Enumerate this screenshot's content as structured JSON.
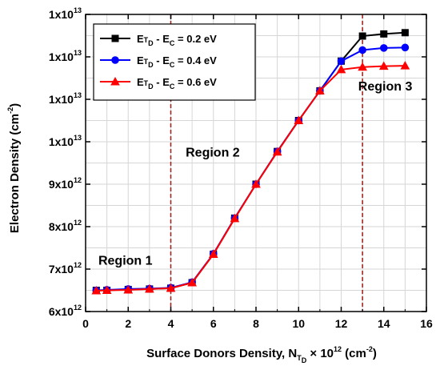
{
  "chart_data": {
    "type": "line",
    "xlabel": {
      "prefix": "Surface Donors Density, N",
      "sub": "T",
      "sub2": "D",
      "mid": " × 10",
      "sup": "12",
      "suffix": " (cm",
      "sup2": "-2",
      "end": ")"
    },
    "ylabel": {
      "main": "Electron Density (cm",
      "sup": "-2",
      "end": ")"
    },
    "xlim": [
      0,
      16
    ],
    "ylim": [
      6000000000000.0,
      13000000000000.0
    ],
    "xticks": [
      {
        "value": 0,
        "label": "0"
      },
      {
        "value": 2,
        "label": "2"
      },
      {
        "value": 4,
        "label": "4"
      },
      {
        "value": 6,
        "label": "6"
      },
      {
        "value": 8,
        "label": "8"
      },
      {
        "value": 10,
        "label": "10"
      },
      {
        "value": 12,
        "label": "12"
      },
      {
        "value": 14,
        "label": "14"
      },
      {
        "value": 16,
        "label": "16"
      }
    ],
    "yticks": [
      {
        "value": 6000000000000.0,
        "base": "6x10",
        "exp": "12"
      },
      {
        "value": 7000000000000.0,
        "base": "7x10",
        "exp": "12"
      },
      {
        "value": 8000000000000.0,
        "base": "8x10",
        "exp": "12"
      },
      {
        "value": 9000000000000.0,
        "base": "9x10",
        "exp": "12"
      },
      {
        "value": 10000000000000.0,
        "base": "1x10",
        "exp": "13"
      },
      {
        "value": 11000000000000.0,
        "base": "1x10",
        "exp": "13"
      },
      {
        "value": 12000000000000.0,
        "base": "1x10",
        "exp": "13"
      },
      {
        "value": 13000000000000.0,
        "base": "1x10",
        "exp": "13"
      }
    ],
    "grid": true,
    "legend_position": "top-left",
    "x": [
      0.5,
      1,
      2,
      3,
      4,
      5,
      6,
      7,
      8,
      9,
      10,
      11,
      12,
      13,
      14,
      15
    ],
    "series": [
      {
        "name": {
          "a": "E",
          "b": "T",
          "c": "D",
          "d": " - E",
          "e": "C",
          "f": " = 0.2 eV"
        },
        "color": "#000000",
        "marker": "square",
        "values": [
          6500000000000.0,
          6500000000000.0,
          6520000000000.0,
          6530000000000.0,
          6550000000000.0,
          6680000000000.0,
          7350000000000.0,
          8200000000000.0,
          9000000000000.0,
          9770000000000.0,
          10500000000000.0,
          11200000000000.0,
          11900000000000.0,
          12490000000000.0,
          12540000000000.0,
          12570000000000.0
        ]
      },
      {
        "name": {
          "a": "E",
          "b": "T",
          "c": "D",
          "d": " - E",
          "e": "C",
          "f": " = 0.4 eV"
        },
        "color": "#0000ff",
        "marker": "circle",
        "values": [
          6500000000000.0,
          6510000000000.0,
          6530000000000.0,
          6540000000000.0,
          6560000000000.0,
          6690000000000.0,
          7360000000000.0,
          8200000000000.0,
          9000000000000.0,
          9770000000000.0,
          10500000000000.0,
          11200000000000.0,
          11900000000000.0,
          12160000000000.0,
          12210000000000.0,
          12220000000000.0
        ]
      },
      {
        "name": {
          "a": "E",
          "b": "T",
          "c": "D",
          "d": " - E",
          "e": "C",
          "f": " = 0.6 eV"
        },
        "color": "#ff0000",
        "marker": "triangle",
        "values": [
          6490000000000.0,
          6500000000000.0,
          6510000000000.0,
          6530000000000.0,
          6550000000000.0,
          6680000000000.0,
          7350000000000.0,
          8190000000000.0,
          9000000000000.0,
          9760000000000.0,
          10500000000000.0,
          11200000000000.0,
          11700000000000.0,
          11760000000000.0,
          11780000000000.0,
          11790000000000.0
        ]
      }
    ],
    "vlines": [
      {
        "x": 4,
        "color": "#a01818"
      },
      {
        "x": 13,
        "color": "#a01818"
      }
    ],
    "annotations": [
      {
        "text": "Region 1",
        "x": 0.6,
        "y": 7100000000000.0
      },
      {
        "text": "Region 2",
        "x": 4.7,
        "y": 9650000000000.0
      },
      {
        "text": "Region 3",
        "x": 12.8,
        "y": 11210000000000.0
      }
    ]
  }
}
